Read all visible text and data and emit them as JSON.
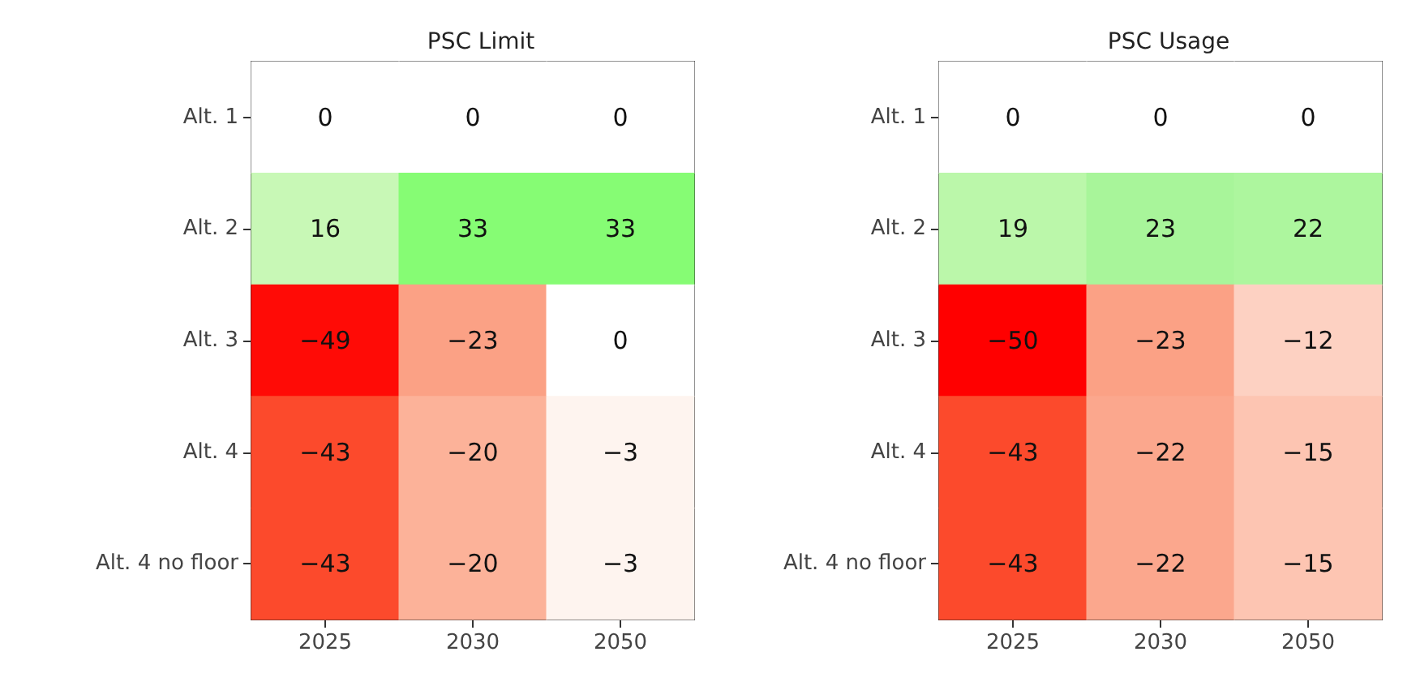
{
  "chart_data": [
    {
      "type": "heatmap",
      "title": "PSC Limit",
      "categories": [
        "2025",
        "2030",
        "2050"
      ],
      "y_categories": [
        "Alt. 1",
        "Alt. 2",
        "Alt. 3",
        "Alt. 4",
        "Alt. 4 no floor"
      ],
      "cells": [
        [
          0,
          0,
          0
        ],
        [
          16,
          33,
          33
        ],
        [
          -49,
          -23,
          0
        ],
        [
          -43,
          -20,
          -3
        ],
        [
          -43,
          -20,
          -3
        ]
      ],
      "data_labels": true
    },
    {
      "type": "heatmap",
      "title": "PSC Usage",
      "categories": [
        "2025",
        "2030",
        "2050"
      ],
      "y_categories": [
        "Alt. 1",
        "Alt. 2",
        "Alt. 3",
        "Alt. 4",
        "Alt. 4 no floor"
      ],
      "cells": [
        [
          0,
          0,
          0
        ],
        [
          19,
          23,
          22
        ],
        [
          -50,
          -23,
          -12
        ],
        [
          -43,
          -22,
          -15
        ],
        [
          -43,
          -22,
          -15
        ]
      ],
      "data_labels": true
    }
  ]
}
